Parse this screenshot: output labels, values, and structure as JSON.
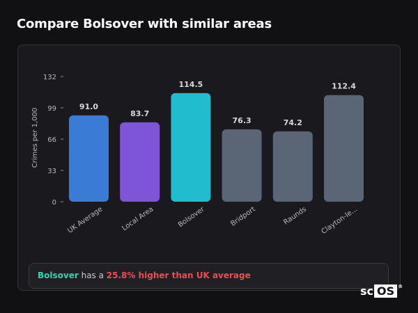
{
  "page": {
    "title": "Compare Bolsover with similar areas"
  },
  "chart_data": {
    "type": "bar",
    "ylabel": "Crimes per 1,000",
    "xlabel": "",
    "ylim": [
      0,
      132
    ],
    "yticks": [
      0,
      33,
      66,
      99,
      132
    ],
    "categories": [
      "UK Average",
      "Local Area",
      "Bolsover",
      "Bridport",
      "Raunds",
      "Clayton-le..."
    ],
    "values": [
      91.0,
      83.7,
      114.5,
      76.3,
      74.2,
      112.4
    ],
    "value_labels": [
      "91.0",
      "83.7",
      "114.5",
      "76.3",
      "74.2",
      "112.4"
    ],
    "colors": [
      "#3a7bd5",
      "#7d55d6",
      "#22bccf",
      "#5a6576",
      "#5a6576",
      "#5a6576"
    ],
    "grid": false
  },
  "summary": {
    "area": "Bolsover",
    "connector": " has a ",
    "difference": "25.8% higher than UK average"
  },
  "logo": {
    "prefix": "sc",
    "boxed": "OS",
    "mark": "®"
  }
}
